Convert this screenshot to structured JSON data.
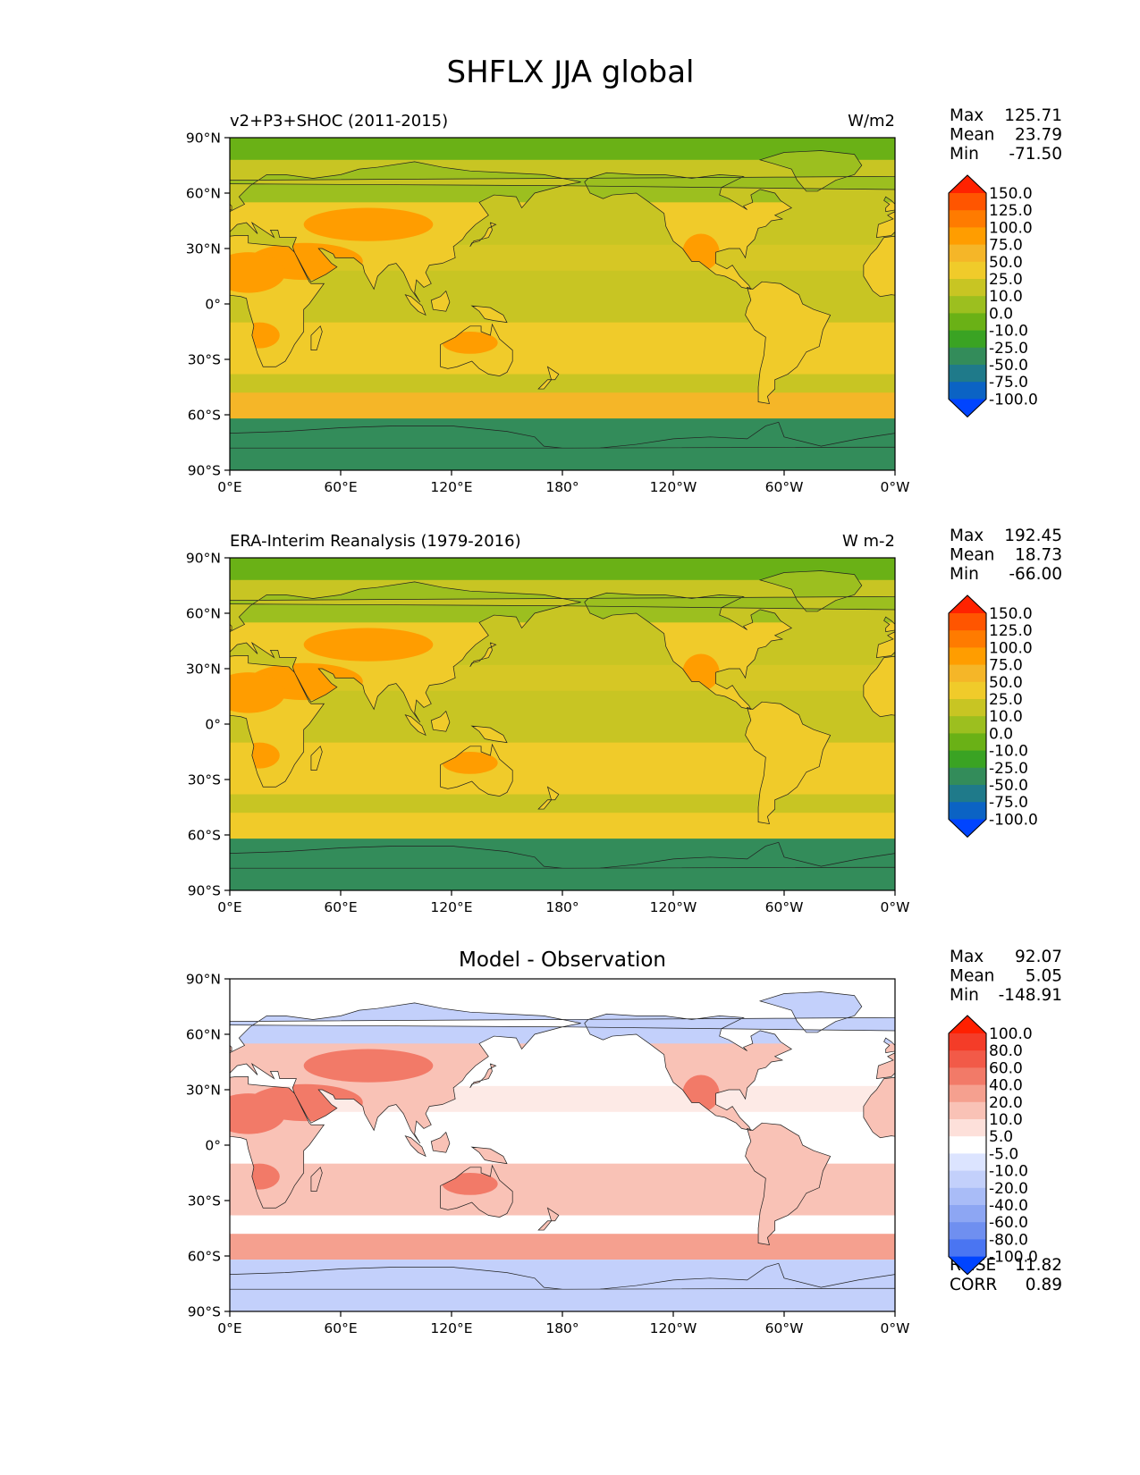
{
  "figure": {
    "title": "SHFLX JJA global"
  },
  "chart_data": [
    {
      "type": "heatmap",
      "panel_title": "",
      "left_title": "v2+P3+SHOC (2011-2015)",
      "right_title": "W/m2",
      "stats": [
        {
          "label": "Max",
          "value": "125.71"
        },
        {
          "label": "Mean",
          "value": "23.79"
        },
        {
          "label": "Min",
          "value": "-71.50"
        }
      ],
      "extra_stats": [],
      "x_ticks": [
        "0°E",
        "60°E",
        "120°E",
        "180°",
        "120°W",
        "60°W",
        "0°W"
      ],
      "y_ticks": [
        "90°N",
        "60°N",
        "30°N",
        "0°",
        "30°S",
        "60°S",
        "90°S"
      ],
      "xlim": [
        0,
        360
      ],
      "ylim": [
        -90,
        90
      ],
      "colorbar": {
        "levels": [
          "150.0",
          "125.0",
          "100.0",
          "75.0",
          "50.0",
          "25.0",
          "10.0",
          "0.0",
          "-10.0",
          "-25.0",
          "-50.0",
          "-75.0",
          "-100.0"
        ],
        "colors": [
          "#ff2200",
          "#ff5500",
          "#ff7b00",
          "#ff9d00",
          "#f5b628",
          "#f0cb2a",
          "#c8c523",
          "#9cbf1f",
          "#6ab116",
          "#3aa323",
          "#338c5a",
          "#1f7a8a",
          "#0b63c4",
          "#0044ff"
        ]
      },
      "pattern": {
        "polar_south": "#338c5a",
        "polar_north": "#6ab116",
        "ocean": "#c8c523",
        "subtropical_band": "#f0cb2a",
        "storm_track": "#f5b628",
        "arid_land": "#ff9d00",
        "land": "#f0cb2a",
        "cold_land": "#9cbf1f"
      }
    },
    {
      "type": "heatmap",
      "panel_title": "",
      "left_title": "ERA-Interim Reanalysis (1979-2016)",
      "right_title": "W m-2",
      "stats": [
        {
          "label": "Max",
          "value": "192.45"
        },
        {
          "label": "Mean",
          "value": "18.73"
        },
        {
          "label": "Min",
          "value": "-66.00"
        }
      ],
      "extra_stats": [],
      "x_ticks": [
        "0°E",
        "60°E",
        "120°E",
        "180°",
        "120°W",
        "60°W",
        "0°W"
      ],
      "y_ticks": [
        "90°N",
        "60°N",
        "30°N",
        "0°",
        "30°S",
        "60°S",
        "90°S"
      ],
      "xlim": [
        0,
        360
      ],
      "ylim": [
        -90,
        90
      ],
      "colorbar": {
        "levels": [
          "150.0",
          "125.0",
          "100.0",
          "75.0",
          "50.0",
          "25.0",
          "10.0",
          "0.0",
          "-10.0",
          "-25.0",
          "-50.0",
          "-75.0",
          "-100.0"
        ],
        "colors": [
          "#ff2200",
          "#ff5500",
          "#ff7b00",
          "#ff9d00",
          "#f5b628",
          "#f0cb2a",
          "#c8c523",
          "#9cbf1f",
          "#6ab116",
          "#3aa323",
          "#338c5a",
          "#1f7a8a",
          "#0b63c4",
          "#0044ff"
        ]
      },
      "pattern": {
        "polar_south": "#338c5a",
        "polar_north": "#6ab116",
        "ocean": "#c8c523",
        "subtropical_band": "#f0cb2a",
        "storm_track": "#f0cb2a",
        "arid_land": "#ff9d00",
        "land": "#f0cb2a",
        "cold_land": "#9cbf1f"
      }
    },
    {
      "type": "heatmap",
      "panel_title": "Model - Observation",
      "left_title": "",
      "right_title": "",
      "stats": [
        {
          "label": "Max",
          "value": "92.07"
        },
        {
          "label": "Mean",
          "value": "5.05"
        },
        {
          "label": "Min",
          "value": "-148.91"
        }
      ],
      "extra_stats": [
        {
          "label": "RMSE",
          "value": "11.82"
        },
        {
          "label": "CORR",
          "value": "0.89"
        }
      ],
      "x_ticks": [
        "0°E",
        "60°E",
        "120°E",
        "180°",
        "120°W",
        "60°W",
        "0°W"
      ],
      "y_ticks": [
        "90°N",
        "60°N",
        "30°N",
        "0°",
        "30°S",
        "60°S",
        "90°S"
      ],
      "xlim": [
        0,
        360
      ],
      "ylim": [
        -90,
        90
      ],
      "colorbar": {
        "levels": [
          "100.0",
          "80.0",
          "60.0",
          "40.0",
          "20.0",
          "10.0",
          "5.0",
          "-5.0",
          "-10.0",
          "-20.0",
          "-40.0",
          "-60.0",
          "-80.0",
          "-100.0"
        ],
        "colors": [
          "#ff2000",
          "#f43c28",
          "#f25a48",
          "#f27a68",
          "#f5a08f",
          "#f9c2b6",
          "#fde0da",
          "#ffffff",
          "#dce4ff",
          "#c3d0fb",
          "#a9bcf7",
          "#8da6f3",
          "#6f8ff0",
          "#4a75f2",
          "#0044ff"
        ]
      },
      "pattern": {
        "polar_south": "#c3d0fb",
        "polar_north": "#ffffff",
        "ocean": "#ffffff",
        "subtropical_band": "#f9c2b6",
        "storm_track": "#f5a08f",
        "arid_land": "#f27a68",
        "land": "#f9c2b6",
        "cold_land": "#c3d0fb"
      }
    }
  ]
}
